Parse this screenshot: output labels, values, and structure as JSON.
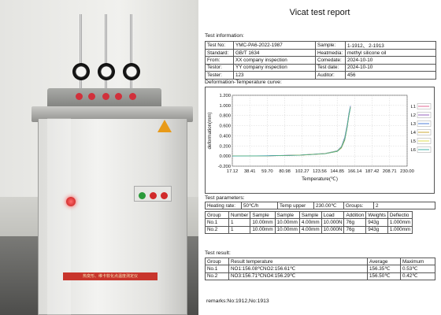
{
  "photo": {
    "cabinet_label": "热变形、维卡软化点温度测定仪"
  },
  "report": {
    "title": "Vicat test report",
    "sections": {
      "info": "Test information:",
      "curve": "Deformation-Temperature curve:",
      "params": "Test parameters:",
      "result": "Test result:"
    },
    "info_rows": [
      [
        "Test No:",
        "YMC-PA6-2022-1987",
        "Sample:",
        "1-1912、 2-1913"
      ],
      [
        "Standard:",
        "GB/T 1634",
        "Heatmedia:",
        "methyl silicone oil"
      ],
      [
        "From:",
        "XX company inspection",
        "Comedate:",
        "2024-10-10"
      ],
      [
        "Testor:",
        "YY company inspection",
        "Test date:",
        "2024-10-10"
      ],
      [
        "Tester:",
        "123",
        "Auditor:",
        "456"
      ]
    ],
    "param_row": [
      "Heating rate:",
      "50℃/h",
      "Temp upper",
      "230.00℃",
      "Groups:",
      "2"
    ],
    "group_header": [
      "Group",
      "Number",
      "Sample",
      "Sample",
      "Sample",
      "Load",
      "Addition",
      "Weights",
      "Deflectio"
    ],
    "group_rows": [
      [
        "No.1",
        "1",
        "10.00mm",
        "10.00mm",
        "4.00mm",
        "10.000N",
        "76g",
        "943g",
        "1.000mm"
      ],
      [
        "No.2",
        "1",
        "10.00mm",
        "10.00mm",
        "4.00mm",
        "10.000N",
        "76g",
        "943g",
        "1.000mm"
      ]
    ],
    "result_header": [
      "Group",
      "Result temperature",
      "Average",
      "Maximum"
    ],
    "result_rows": [
      [
        "No.1",
        "NO1:156.08℃NO2:156.61℃",
        "156.35℃",
        "0.53℃"
      ],
      [
        "No.2",
        "NO3:156.71℃NO4:156.29℃",
        "156.50℃",
        "0.42℃"
      ]
    ],
    "remarks": "remarks:No:1912,No:1913"
  },
  "chart_data": {
    "type": "line",
    "title": "",
    "xlabel": "Temperature(℃)",
    "ylabel": "deformation(mm)",
    "xlim": [
      17.12,
      230.0
    ],
    "ylim": [
      -0.2,
      1.2
    ],
    "x_ticks": [
      "17.12",
      "38.41",
      "59.70",
      "80.98",
      "102.27",
      "123.56",
      "144.85",
      "166.14",
      "187.42",
      "208.71",
      "230.00"
    ],
    "y_ticks": [
      "1.200",
      "1.000",
      "0.800",
      "0.600",
      "0.400",
      "0.200",
      "0.000",
      "-0.200"
    ],
    "legend_position": "right",
    "series": [
      {
        "name": "L1",
        "color": "#e05a8a",
        "x": [
          17.12,
          60,
          100,
          130,
          145,
          150,
          154,
          157,
          159,
          161
        ],
        "y": [
          0.0,
          0.005,
          0.02,
          0.05,
          0.1,
          0.18,
          0.35,
          0.6,
          0.82,
          0.98
        ]
      },
      {
        "name": "L2",
        "color": "#8a4fb5",
        "x": [
          17.12,
          60,
          100,
          130,
          145,
          150,
          154,
          157,
          159,
          161
        ],
        "y": [
          0.0,
          0.004,
          0.018,
          0.048,
          0.095,
          0.17,
          0.33,
          0.58,
          0.8,
          0.97
        ]
      },
      {
        "name": "L3",
        "color": "#3a6fd6",
        "x": [
          17.12,
          60,
          100,
          130,
          145,
          150,
          154,
          157,
          159,
          161
        ],
        "y": [
          0.0,
          0.006,
          0.022,
          0.052,
          0.105,
          0.19,
          0.37,
          0.62,
          0.84,
          0.99
        ]
      },
      {
        "name": "L4",
        "color": "#c8a020",
        "x": [
          17.12,
          60,
          100,
          130,
          145,
          150,
          154,
          157,
          159,
          161
        ],
        "y": [
          0.0,
          0.003,
          0.015,
          0.045,
          0.09,
          0.16,
          0.31,
          0.56,
          0.78,
          0.96
        ]
      },
      {
        "name": "L5",
        "color": "#d8d840",
        "x": [
          17.12,
          60,
          100,
          130,
          145,
          150,
          154,
          157,
          159,
          161
        ],
        "y": [
          0.0,
          0.005,
          0.02,
          0.05,
          0.1,
          0.18,
          0.34,
          0.59,
          0.81,
          0.97
        ]
      },
      {
        "name": "L6",
        "color": "#2aa8a0",
        "x": [
          17.12,
          60,
          100,
          130,
          145,
          150,
          154,
          157,
          159,
          161
        ],
        "y": [
          0.0,
          0.004,
          0.017,
          0.046,
          0.093,
          0.17,
          0.32,
          0.57,
          0.79,
          0.96
        ]
      }
    ]
  }
}
